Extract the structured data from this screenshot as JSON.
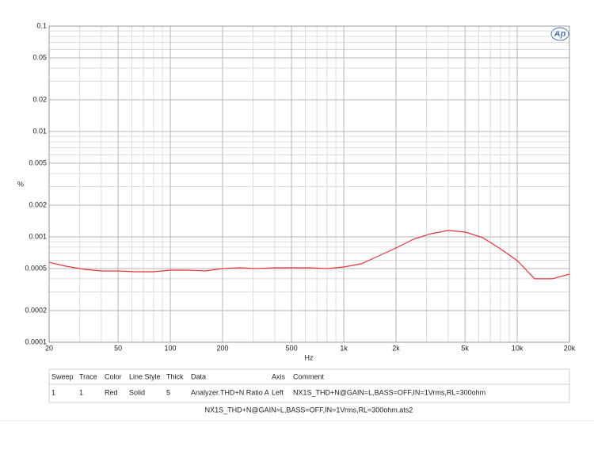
{
  "chart_data": {
    "type": "line",
    "logo": "Ap",
    "ylabel": "%",
    "xlabel": "Hz",
    "xlog": true,
    "ylog": true,
    "grid": true,
    "xlim": [
      20,
      20000
    ],
    "ylim": [
      0.0001,
      0.1
    ],
    "xticks": [
      20,
      50,
      100,
      200,
      500,
      {
        "value": 1000,
        "label": "1k"
      },
      {
        "value": 2000,
        "label": "2k"
      },
      {
        "value": 5000,
        "label": "5k"
      },
      {
        "value": 10000,
        "label": "10k"
      },
      {
        "value": 20000,
        "label": "20k"
      }
    ],
    "xminorticks": [
      30,
      40,
      60,
      70,
      80,
      90,
      300,
      400,
      600,
      700,
      800,
      900,
      3000,
      4000,
      6000,
      7000,
      8000,
      9000
    ],
    "yticks": [
      0.1,
      0.05,
      0.02,
      0.01,
      0.005,
      0.002,
      0.001,
      0.0005,
      0.0002,
      0.0001
    ],
    "yminorticks": [
      0.0003,
      0.0004,
      0.0006,
      0.0007,
      0.0008,
      0.0009,
      0.003,
      0.004,
      0.006,
      0.007,
      0.008,
      0.009,
      0.03,
      0.04,
      0.06,
      0.07,
      0.08,
      0.09
    ],
    "x": [
      20,
      25,
      32,
      40,
      50,
      63,
      80,
      100,
      126,
      159,
      200,
      252,
      317,
      400,
      504,
      635,
      800,
      1000,
      1260,
      1590,
      2000,
      2520,
      3170,
      4000,
      5040,
      6350,
      8000,
      10000,
      12600,
      15900,
      20000
    ],
    "series": [
      {
        "color": "#e8333c",
        "values": [
          0.000574,
          0.000527,
          0.000492,
          0.000475,
          0.000475,
          0.000467,
          0.000467,
          0.000483,
          0.000483,
          0.000475,
          0.0005,
          0.000509,
          0.0005,
          0.000509,
          0.000509,
          0.000509,
          0.0005,
          0.000518,
          0.000555,
          0.00066,
          0.000785,
          0.00095,
          0.00107,
          0.00115,
          0.00111,
          0.00098,
          0.00077,
          0.000595,
          0.0004,
          0.0004,
          0.000443
        ]
      }
    ]
  },
  "table": {
    "headers": [
      "Sweep",
      "Trace",
      "Color",
      "Line Style",
      "Thick",
      "Data",
      "Axis",
      "Comment"
    ],
    "rows": [
      [
        "1",
        "1",
        "Red",
        "Solid",
        "5",
        "Analyzer.THD+N Ratio A",
        "Left",
        "NX1S_THD+N@GAIN=L,BASS=OFF,IN=1Vrms,RL=300ohm"
      ]
    ],
    "footer": "NX1S_THD+N@GAIN=L,BASS=OFF,IN=1Vrms,RL=300ohm.ats2"
  }
}
